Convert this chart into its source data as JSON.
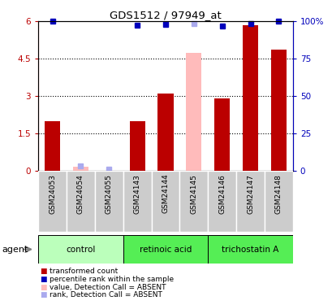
{
  "title": "GDS1512 / 97949_at",
  "samples": [
    "GSM24053",
    "GSM24054",
    "GSM24055",
    "GSM24143",
    "GSM24144",
    "GSM24145",
    "GSM24146",
    "GSM24147",
    "GSM24148"
  ],
  "red_values": [
    2.0,
    0.15,
    0.0,
    2.0,
    3.1,
    4.75,
    2.9,
    5.85,
    4.85
  ],
  "blue_values": [
    6.0,
    0.2,
    0.07,
    5.85,
    5.87,
    5.92,
    5.82,
    5.9,
    6.0
  ],
  "absent_mask": [
    false,
    true,
    true,
    false,
    false,
    true,
    false,
    false,
    false
  ],
  "groups": [
    {
      "label": "control",
      "start": 0,
      "end": 3
    },
    {
      "label": "retinoic acid",
      "start": 3,
      "end": 6
    },
    {
      "label": "trichostatin A",
      "start": 6,
      "end": 9
    }
  ],
  "group_colors": [
    "#bbffbb",
    "#55ee55",
    "#55ee55"
  ],
  "ylim_left": [
    0,
    6
  ],
  "ylim_right": [
    0,
    100
  ],
  "yticks_left": [
    0,
    1.5,
    3.0,
    4.5,
    6.0
  ],
  "ytick_labels_left": [
    "0",
    "1.5",
    "3",
    "4.5",
    "6"
  ],
  "yticks_right": [
    0,
    25,
    50,
    75,
    100
  ],
  "ytick_labels_right": [
    "0",
    "25",
    "50",
    "75",
    "100%"
  ],
  "red_color": "#bb0000",
  "pink_color": "#ffbbbb",
  "blue_color": "#0000bb",
  "light_blue_color": "#aaaaee",
  "bar_width": 0.55,
  "legend_items": [
    {
      "color": "#bb0000",
      "label": "transformed count"
    },
    {
      "color": "#0000bb",
      "label": "percentile rank within the sample"
    },
    {
      "color": "#ffbbbb",
      "label": "value, Detection Call = ABSENT"
    },
    {
      "color": "#aaaaee",
      "label": "rank, Detection Call = ABSENT"
    }
  ],
  "tick_bg_color": "#cccccc",
  "agent_label": "agent"
}
